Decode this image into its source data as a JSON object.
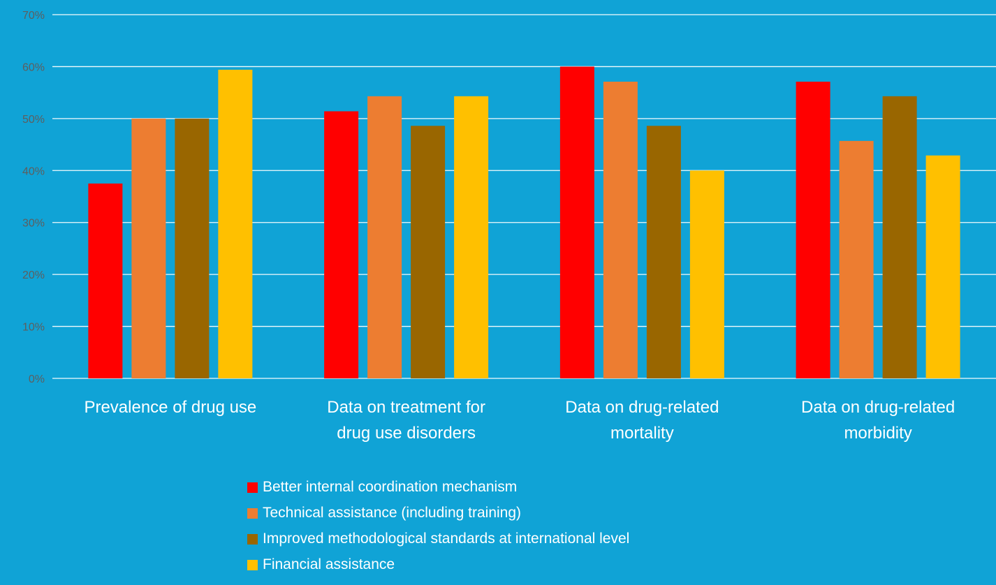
{
  "chart_data": {
    "type": "bar",
    "title": "",
    "xlabel": "",
    "ylabel": "",
    "ylim": [
      0,
      70
    ],
    "y_ticks": [
      "0%",
      "10%",
      "20%",
      "30%",
      "40%",
      "50%",
      "60%",
      "70%"
    ],
    "grid": true,
    "legend_position": "bottom",
    "categories": [
      "Prevalence of drug use",
      "Data on treatment for drug use disorders",
      "Data on drug-related mortality",
      "Data on drug-related morbidity"
    ],
    "category_label_lines": [
      [
        "Prevalence of drug use"
      ],
      [
        "Data on treatment for",
        "drug use disorders"
      ],
      [
        "Data on drug-related",
        "mortality"
      ],
      [
        "Data on drug-related",
        "morbidity"
      ]
    ],
    "series": [
      {
        "name": "Better internal coordination mechanism",
        "color": "#ff0000",
        "values": [
          37.5,
          51.4,
          60.0,
          57.1
        ]
      },
      {
        "name": "Technical assistance (including training)",
        "color": "#ed7d31",
        "values": [
          50.0,
          54.3,
          57.1,
          45.7
        ]
      },
      {
        "name": "Improved methodological standards at international level",
        "color": "#996600",
        "values": [
          50.0,
          48.6,
          48.6,
          54.3
        ]
      },
      {
        "name": "Financial assistance",
        "color": "#ffc000",
        "values": [
          59.4,
          54.3,
          40.0,
          42.9
        ]
      }
    ]
  }
}
